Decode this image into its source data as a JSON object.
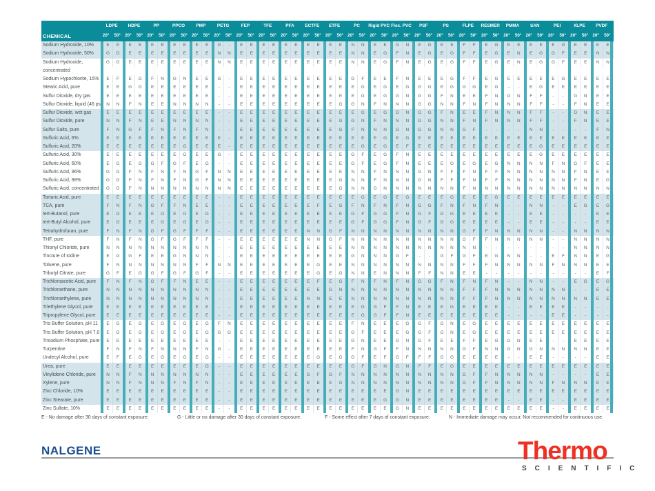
{
  "header": {
    "chemical_label": "CHEMICAL",
    "temp_labels": [
      "20°",
      "50°"
    ],
    "materials": [
      "LDPE",
      "HDPE",
      "PP",
      "PPCO",
      "PMP",
      "PETG",
      "FEP",
      "TFE",
      "PFA",
      "ECTFE",
      "ETFE",
      "PC",
      "Rigid PVC",
      "Flex. PVC",
      "PSF",
      "PS",
      "FLPE",
      "RESMER",
      "PMMA",
      "SAN",
      "PEI",
      "XLPE",
      "PVDF"
    ]
  },
  "rows": [
    {
      "name": "Sodium Hydroxide, 10%",
      "shaded": true,
      "v": "EE EE EE EE EE G- EE EE EE EE EE NN EE GN EG EE FF EG EE EE EG EE EE"
    },
    {
      "name": "Sodium Hydroxide, 50%",
      "shaded": true,
      "v": "GG EE EE EE EE NN EE EE EE EE EE NN EG FN EG EG FF EG EN EG GF EE NN"
    },
    {
      "name": "Sodium Hydroxide,",
      "name2": "concentrated",
      "shaded": false,
      "v": "GG EE EE EE EE NN EE EE EE EE EE NN EG FN EG EG FF EG EN EG GF EE NN"
    },
    {
      "name": "Sodium Hypochlorite, 15%",
      "shaded": false,
      "v": "EF EG FN GN EE G- EE EE EE EE EE GF EE FN EE EG FF EG EE EE EG EE EE"
    },
    {
      "name": "Stearic Acid, pure",
      "shaded": false,
      "v": "EE GG EE EE EE -- EE EE EE EE EE EG EG EG GG EG GG EG -- EG EE EE EE"
    },
    {
      "name": "Sulfur Dioxide, dry gas",
      "shaded": false,
      "v": "EE EE EE EE EE -- EE EE EE EE EE EG EG GN GG FN EE FN GN FF -- GN EE"
    },
    {
      "name": "Sulfur Dioxide, liquid (46 psig)",
      "shaded": false,
      "v": "NN FN EE NN NN -- EE EE EE EE EG GN FN NN GG NN FN FN NN FF -- FN EE"
    },
    {
      "name": "Sulfur Dioxide, wet gas",
      "shaded": true,
      "v": "EE EE EE EE EE -- EE EE EE EE EE EG EG GN GG FN EE FN NN FF -- GN EE"
    },
    {
      "name": "Sulfur Dioxide, pure",
      "shaded": true,
      "v": "NN FN EE NN NN -- EE EE EE EE EG GN FN NN GG NN FN FN NN FF -- FN EE"
    },
    {
      "name": "Sulfur Salts, pure",
      "shaded": true,
      "v": "FN GF FN FN FN -- EE EE EE EE EG FN NN GN GG NN GF -- -- NN -- -- FN"
    },
    {
      "name": "Sulfuric Acid, 6%",
      "shaded": true,
      "v": "EE EE EE EE EE E- EE EE EE EE EE EE EG EG EE EE EE EE EE EE EE EE EE"
    },
    {
      "name": "Sulfuric Acid, 20%",
      "shaded": true,
      "v": "EE EE EE EG EE E- EE EE EE EE EE EG EG EF EE EE EE EE EE EG EE EE EE"
    },
    {
      "name": "Sulfuric Acid, 30%",
      "shaded": false,
      "v": "EE EE EE EG EE G- EE EE EE EE EE GF EG FN EE EE EE EE EE EG EE EE EE"
    },
    {
      "name": "Sulfuric Acid, 60%",
      "shaded": false,
      "v": "EG EG GF GF EG -- EE EE EE EE EE GF EG FN EE EG EG EG NN NN FN GF EE"
    },
    {
      "name": "Sulfuric Acid, 96%",
      "shaded": false,
      "v": "GG FN FN FN GF NN EE EE EE EE EE NN FN NN GN FF FN FF NN NN NN FN EE"
    },
    {
      "name": "Sulfuric Acid, 98%",
      "shaded": false,
      "v": "GG FN FN FN GF NN EE EE EE EE EG NN FN NN GN FF FN FF NN NN NN FN EG"
    },
    {
      "name": "Sulfuric Acid, concentrated",
      "shaded": false,
      "v": "GG FN NN NN NN NN EE EE EE EE EG NN GN NN NN NN FN NN NN NN NN NN NN"
    },
    {
      "name": "Tartaric Acid, pure",
      "shaded": true,
      "v": "EE EE EE EE EE -- EE EE EE EE EE EG EG EG EE EG EE EG EE EE EE EE EE"
    },
    {
      "name": "TCA, pure",
      "shaded": true,
      "v": "FN FN GF FN EE -- EE EE EE EF EG FN FN FN GG FN FN FN -- NN -- EG EG"
    },
    {
      "name": "tert-Butanol, pure",
      "shaded": true,
      "v": "EG EE EG EG EG -- EE EE EE EE EE GF GG FN GF GG EE EE -- EE -- -- EE"
    },
    {
      "name": "tert-Butyl Alcohol, pure",
      "shaded": true,
      "v": "EG EE EG EG EG -- EE EE EE EE EE GF GG FN GF GG EE EE -- EE -- -- EE"
    },
    {
      "name": "Tetrahydrofuran, pure",
      "shaded": true,
      "v": "FN FN GF GF FF -- EE EE EE NN GF NN NN NN NN NN GF FN NN NN -- NN NN"
    },
    {
      "name": "THF, pure",
      "shaded": false,
      "v": "FN FN GF GF FF -- EE EE EE NN GF NN NN NN NN NN GF FN NN NN -- NN NN"
    },
    {
      "name": "Thionyl Chloride, pure",
      "shaded": false,
      "v": "NN NN NN NN NN -- EE EE EE EE EE NN NN NN NN NN NN -- -- -- -- NN NN"
    },
    {
      "name": "Tincture of Iodine",
      "shaded": false,
      "v": "EG GF EE GN NN -- EE EE EE EE EE GN NN GF -- GF GF EG NN -- EF NN EG"
    },
    {
      "name": "Toluene, pure",
      "shaded": false,
      "v": "FN NN NN NN FF NN EE EE EE EG EE NN NN NN NN NN FF FN NN NN FN NN EE"
    },
    {
      "name": "Tributyl Citrate, pure",
      "shaded": false,
      "v": "GF EG GF GF GF -- EE EE EE EG EG NN EN NN FF NN EE -- -- -- -- -- EF"
    },
    {
      "name": "Trichloroacetic Acid, pure",
      "shaded": true,
      "v": "FN FN GF FN EE -- EE EE EE EF EG FN FN FN GG FN FN FN -- NN -- EG EG"
    },
    {
      "name": "Trichloroethane, pure",
      "shaded": true,
      "v": "NN NN NN NN NN -- EE EE EE EE GN NN NN NN NN NN FF FN NN NN NN -- EE"
    },
    {
      "name": "Trichloroethylene, pure",
      "shaded": true,
      "v": "NN NN NN NN NN -- EE EE EE NN EE NN NN NN NN NN FF FN NN NN NN NN EE"
    },
    {
      "name": "Triethylene Glycol, pure",
      "shaded": true,
      "v": "EE EE EE EE EE -- EE EE EE EE EE EG GF FN EE EG EE EE -- EE EE -- --"
    },
    {
      "name": "Tripropylene Glycol, pure",
      "shaded": true,
      "v": "EE EE EE EE EE -- EE EE EE EE EE EG GF FN EE EE EE EE -- -- EE -- --"
    },
    {
      "name": "Tris Buffer Solution, pH 11",
      "shaded": false,
      "v": "EG EG EG EG EG FN EE EE EE EE EE FN EE EG GF GN EG EE EE EE EE EE EE"
    },
    {
      "name": "Tris Buffer Solution, pH 7.0",
      "shaded": false,
      "v": "EG EG EG EG EG GG EE EE EE EE EE GF EE EG GF GN EG EE EE EE EE EE EE"
    },
    {
      "name": "Trisodium Phosphate, pure",
      "shaded": false,
      "v": "EE EE EE EE EE -- EE EE EE EE EE GN EE GN GF EE FF EG GN EE -- EE EE"
    },
    {
      "name": "Turpentine",
      "shaded": false,
      "v": "FN FN FN NN FN G- EE EE EE EE EE FN GF FN NN NN GF NN GN GN NN NN EE"
    },
    {
      "name": "Undecyl Alcohol, pure",
      "shaded": false,
      "v": "EF EG EG EG EG -- EE EE EE EG EG GF EF GF FF GG EE EE -- EE -- -- EE"
    },
    {
      "name": "Urea, pure",
      "shaded": true,
      "v": "EE EE EE EE EG -- EE EE EE EE EE GF GN GN FF EG EE EE EE EE EE EE EE"
    },
    {
      "name": "Vinylidene Chloride, pure",
      "shaded": true,
      "v": "NN FN NN NN NN -- EE EE EE GF GF NN NN NN NN NN GF FN NN NN -- -- EE"
    },
    {
      "name": "Xylene, pure",
      "shaded": true,
      "v": "NN FN NN FN FN -- EE EE EE EE EG NN NN NN NN NN GF FN NN NN FN NN EE"
    },
    {
      "name": "Zinc Chloride, 10%",
      "shaded": true,
      "v": "EE EE EE EE EE -- EE EE EE EE EE EE EE GN EE EE EE EE EE EE EE EE EE"
    },
    {
      "name": "Zinc Stearate, pure",
      "shaded": true,
      "v": "EE EE EE EE EE -- EE EE EE EE EE EE EG GN EE EE EE EE -- EE -- EE EE"
    },
    {
      "name": "Zinc Sulfate, 10%",
      "shaded": false,
      "v": "EE EE EE EE EE -- EE EE EE EE EE EE EE GN EE EE EE EE EE EE -- EE EE"
    }
  ],
  "legend": [
    "E - No damage after 30 days of constant exposure.",
    "G - Little or no damage after 30 days of constant exposure.",
    "F - Some effect after 7 days of constant exposure.",
    "N - Immediate damage may occur. Not recommended for continuous use."
  ],
  "footer": {
    "nalgene": "NALGENE",
    "thermo": "Thermo",
    "scientific": "S C I E N T I F I C"
  },
  "colors": {
    "header_teal": "#0b8c9b",
    "column_band_teal": "#45adb9",
    "row_shade_blue": "#d3e4ea",
    "nalgene_blue": "#1b4e8e",
    "thermo_red": "#ee3124"
  }
}
